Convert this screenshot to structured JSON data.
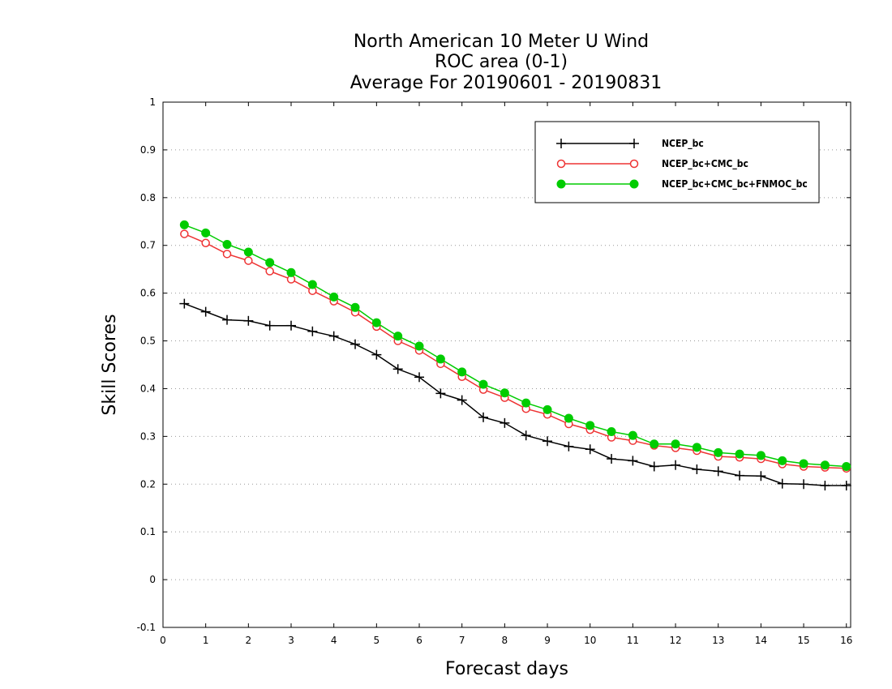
{
  "chart_data": {
    "type": "line",
    "title": [
      "North American 10 Meter U Wind",
      "ROC area (0-1)",
      "Average For 20190601 - 20190831"
    ],
    "xlabel": "Forecast days",
    "ylabel": "Skill Scores",
    "xlim": [
      0,
      16.1
    ],
    "ylim": [
      -0.1,
      1
    ],
    "xticks": [
      0,
      1,
      2,
      3,
      4,
      5,
      6,
      7,
      8,
      9,
      10,
      11,
      12,
      13,
      14,
      15,
      16
    ],
    "yticks": [
      -0.1,
      0,
      0.1,
      0.2,
      0.3,
      0.4,
      0.5,
      0.6,
      0.7,
      0.8,
      0.9,
      1
    ],
    "ytick_labels": [
      "-0.1",
      "0",
      "0.1",
      "0.2",
      "0.3",
      "0.4",
      "0.5",
      "0.6",
      "0.7",
      "0.8",
      "0.9",
      "1"
    ],
    "grid": "horizontal dotted",
    "legend_position": "top-right",
    "x": [
      0.5,
      1,
      1.5,
      2,
      2.5,
      3,
      3.5,
      4,
      4.5,
      5,
      5.5,
      6,
      6.5,
      7,
      7.5,
      8,
      8.5,
      9,
      9.5,
      10,
      10.5,
      11,
      11.5,
      12,
      12.5,
      13,
      13.5,
      14,
      14.5,
      15,
      15.5,
      16
    ],
    "series": [
      {
        "name": "NCEP_bc",
        "color": "#000000",
        "marker": "plus",
        "values": [
          0.578,
          0.561,
          0.544,
          0.542,
          0.532,
          0.532,
          0.52,
          0.51,
          0.493,
          0.471,
          0.441,
          0.424,
          0.39,
          0.376,
          0.34,
          0.328,
          0.302,
          0.29,
          0.279,
          0.273,
          0.253,
          0.249,
          0.237,
          0.24,
          0.231,
          0.227,
          0.218,
          0.217,
          0.201,
          0.2,
          0.197,
          0.197
        ]
      },
      {
        "name": "NCEP_bc+CMC_bc",
        "color": "#ee3333",
        "marker": "open-circle",
        "values": [
          0.724,
          0.705,
          0.682,
          0.668,
          0.646,
          0.629,
          0.605,
          0.583,
          0.56,
          0.53,
          0.5,
          0.48,
          0.452,
          0.425,
          0.398,
          0.381,
          0.358,
          0.346,
          0.326,
          0.314,
          0.298,
          0.291,
          0.281,
          0.276,
          0.27,
          0.258,
          0.256,
          0.253,
          0.242,
          0.237,
          0.235,
          0.233
        ]
      },
      {
        "name": "NCEP_bc+CMC_bc+FNMOC_bc",
        "color": "#00cc00",
        "marker": "filled-circle",
        "values": [
          0.743,
          0.726,
          0.702,
          0.686,
          0.664,
          0.643,
          0.618,
          0.592,
          0.57,
          0.538,
          0.51,
          0.489,
          0.462,
          0.435,
          0.409,
          0.391,
          0.37,
          0.356,
          0.338,
          0.323,
          0.31,
          0.302,
          0.284,
          0.284,
          0.277,
          0.266,
          0.263,
          0.26,
          0.249,
          0.243,
          0.24,
          0.237
        ]
      }
    ]
  }
}
